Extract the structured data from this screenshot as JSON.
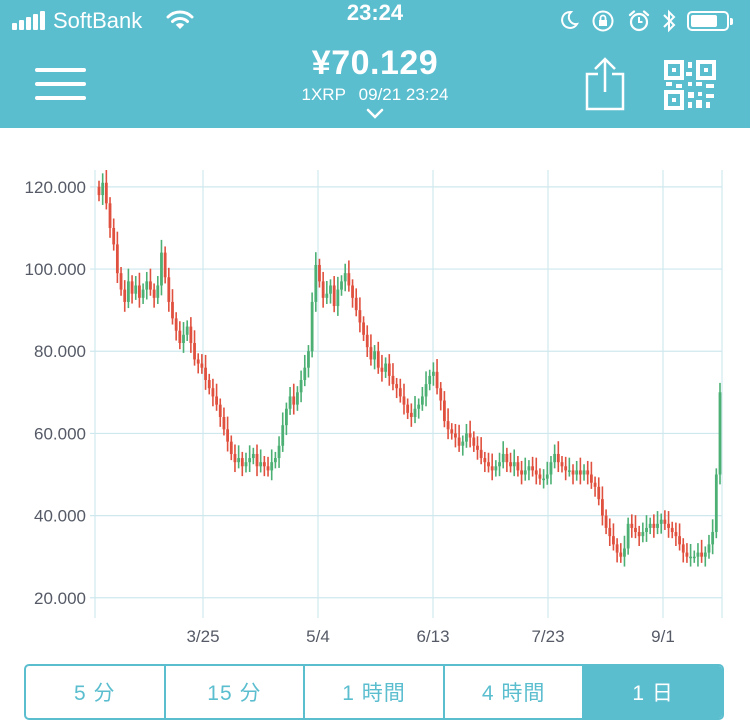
{
  "status_bar": {
    "carrier": "SoftBank",
    "time": "23:24",
    "battery_level": 0.75,
    "icons": [
      "signal-icon",
      "wifi-icon",
      "moon-icon",
      "rotation-lock-icon",
      "alarm-icon",
      "bluetooth-icon",
      "battery-icon"
    ]
  },
  "header": {
    "price": "¥70.129",
    "unit": "1XRP",
    "datetime": "09/21 23:24",
    "icons": [
      "menu-icon",
      "chevron-down-icon",
      "share-icon",
      "qr-code-icon"
    ]
  },
  "colors": {
    "accent": "#5bbecf",
    "up": "#4caf73",
    "down": "#e0503e",
    "grid": "#cfe8ee"
  },
  "chart_data": {
    "type": "candlestick",
    "x_tick_labels": [
      "3/25",
      "5/4",
      "6/13",
      "7/23",
      "9/1"
    ],
    "y_tick_labels": [
      "20.000",
      "40.000",
      "60.000",
      "80.000",
      "100.000",
      "120.000"
    ],
    "ylim": [
      18,
      128
    ],
    "grid": true,
    "approx_close_series": [
      118,
      121,
      116,
      110,
      106,
      99,
      95,
      92,
      97,
      94,
      96,
      93,
      95,
      97,
      95,
      93,
      96,
      104,
      98,
      92,
      88,
      85,
      82,
      84,
      86,
      82,
      78,
      77,
      76,
      73,
      71,
      69,
      67,
      64,
      61,
      58,
      55,
      53,
      54,
      52,
      53,
      54,
      55,
      52,
      53,
      52,
      51,
      53,
      54,
      57,
      62,
      66,
      69,
      67,
      70,
      73,
      76,
      80,
      92,
      101,
      97,
      93,
      94,
      96,
      91,
      95,
      97,
      99,
      96,
      93,
      90,
      87,
      84,
      81,
      78,
      80,
      76,
      75,
      77,
      74,
      72,
      71,
      69,
      67,
      65,
      64,
      66,
      67,
      69,
      72,
      74,
      75,
      71,
      68,
      63,
      61,
      60,
      59,
      57,
      58,
      60,
      59,
      57,
      56,
      54,
      53,
      52,
      51,
      52,
      53,
      55,
      53,
      52,
      53,
      51,
      50,
      51,
      52,
      51,
      50,
      49,
      49,
      50,
      53,
      55,
      53,
      52,
      51,
      51,
      50,
      51,
      50,
      51,
      50,
      48,
      47,
      44,
      40,
      37,
      35,
      33,
      31,
      30,
      32,
      38,
      37,
      36,
      35,
      36,
      37,
      38,
      37,
      38,
      39,
      38,
      37,
      36,
      35,
      33,
      31,
      30,
      30,
      30,
      31,
      30,
      31,
      33,
      36,
      50,
      70
    ]
  },
  "tabs": [
    {
      "label": "5 分",
      "active": false
    },
    {
      "label": "15 分",
      "active": false
    },
    {
      "label": "1 時間",
      "active": false
    },
    {
      "label": "4 時間",
      "active": false
    },
    {
      "label": "1 日",
      "active": true
    }
  ]
}
